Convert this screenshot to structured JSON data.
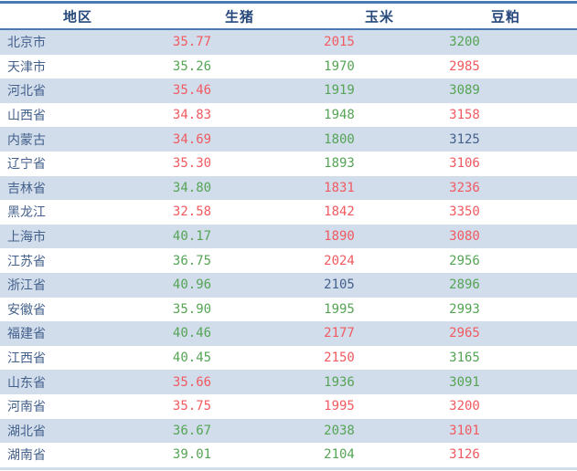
{
  "chart_data": {
    "type": "table",
    "columns": [
      {
        "id": "region",
        "label": "地区"
      },
      {
        "id": "pig",
        "label": "生猪"
      },
      {
        "id": "corn",
        "label": "玉米"
      },
      {
        "id": "soy",
        "label": "豆粕"
      }
    ],
    "rows": [
      {
        "region": "北京市",
        "pig": "35.77",
        "pig_color": "red",
        "corn": "2015",
        "corn_color": "red",
        "soy": "3200",
        "soy_color": "green"
      },
      {
        "region": "天津市",
        "pig": "35.26",
        "pig_color": "green",
        "corn": "1970",
        "corn_color": "green",
        "soy": "2985",
        "soy_color": "red"
      },
      {
        "region": "河北省",
        "pig": "35.46",
        "pig_color": "red",
        "corn": "1919",
        "corn_color": "green",
        "soy": "3089",
        "soy_color": "green"
      },
      {
        "region": "山西省",
        "pig": "34.83",
        "pig_color": "red",
        "corn": "1948",
        "corn_color": "green",
        "soy": "3158",
        "soy_color": "red"
      },
      {
        "region": "内蒙古",
        "pig": "34.69",
        "pig_color": "red",
        "corn": "1800",
        "corn_color": "green",
        "soy": "3125",
        "soy_color": "neutral"
      },
      {
        "region": "辽宁省",
        "pig": "35.30",
        "pig_color": "red",
        "corn": "1893",
        "corn_color": "green",
        "soy": "3106",
        "soy_color": "red"
      },
      {
        "region": "吉林省",
        "pig": "34.80",
        "pig_color": "green",
        "corn": "1831",
        "corn_color": "red",
        "soy": "3236",
        "soy_color": "red"
      },
      {
        "region": "黑龙江",
        "pig": "32.58",
        "pig_color": "red",
        "corn": "1842",
        "corn_color": "red",
        "soy": "3350",
        "soy_color": "red"
      },
      {
        "region": "上海市",
        "pig": "40.17",
        "pig_color": "green",
        "corn": "1890",
        "corn_color": "red",
        "soy": "3080",
        "soy_color": "red"
      },
      {
        "region": "江苏省",
        "pig": "36.75",
        "pig_color": "green",
        "corn": "2024",
        "corn_color": "red",
        "soy": "2956",
        "soy_color": "green"
      },
      {
        "region": "浙江省",
        "pig": "40.96",
        "pig_color": "green",
        "corn": "2105",
        "corn_color": "neutral",
        "soy": "2896",
        "soy_color": "green"
      },
      {
        "region": "安徽省",
        "pig": "35.90",
        "pig_color": "green",
        "corn": "1995",
        "corn_color": "green",
        "soy": "2993",
        "soy_color": "green"
      },
      {
        "region": "福建省",
        "pig": "40.46",
        "pig_color": "green",
        "corn": "2177",
        "corn_color": "red",
        "soy": "2965",
        "soy_color": "red"
      },
      {
        "region": "江西省",
        "pig": "40.45",
        "pig_color": "green",
        "corn": "2150",
        "corn_color": "red",
        "soy": "3165",
        "soy_color": "green"
      },
      {
        "region": "山东省",
        "pig": "35.66",
        "pig_color": "red",
        "corn": "1936",
        "corn_color": "green",
        "soy": "3091",
        "soy_color": "green"
      },
      {
        "region": "河南省",
        "pig": "35.75",
        "pig_color": "red",
        "corn": "1995",
        "corn_color": "red",
        "soy": "3200",
        "soy_color": "red"
      },
      {
        "region": "湖北省",
        "pig": "36.67",
        "pig_color": "green",
        "corn": "2038",
        "corn_color": "green",
        "soy": "3101",
        "soy_color": "red"
      },
      {
        "region": "湖南省",
        "pig": "39.01",
        "pig_color": "green",
        "corn": "2104",
        "corn_color": "green",
        "soy": "3126",
        "soy_color": "red"
      }
    ],
    "value_colors": {
      "red": "#f05a60",
      "green": "#55a455",
      "neutral": "#44618c"
    },
    "layout": {
      "alternating_rows": true,
      "first_data_row_shaded": true
    }
  },
  "style": {
    "accent_border": "#4b7ab2",
    "header_text": "#27497c",
    "alt_row_bg": "#d2ddec",
    "region_text": "#44618c"
  }
}
